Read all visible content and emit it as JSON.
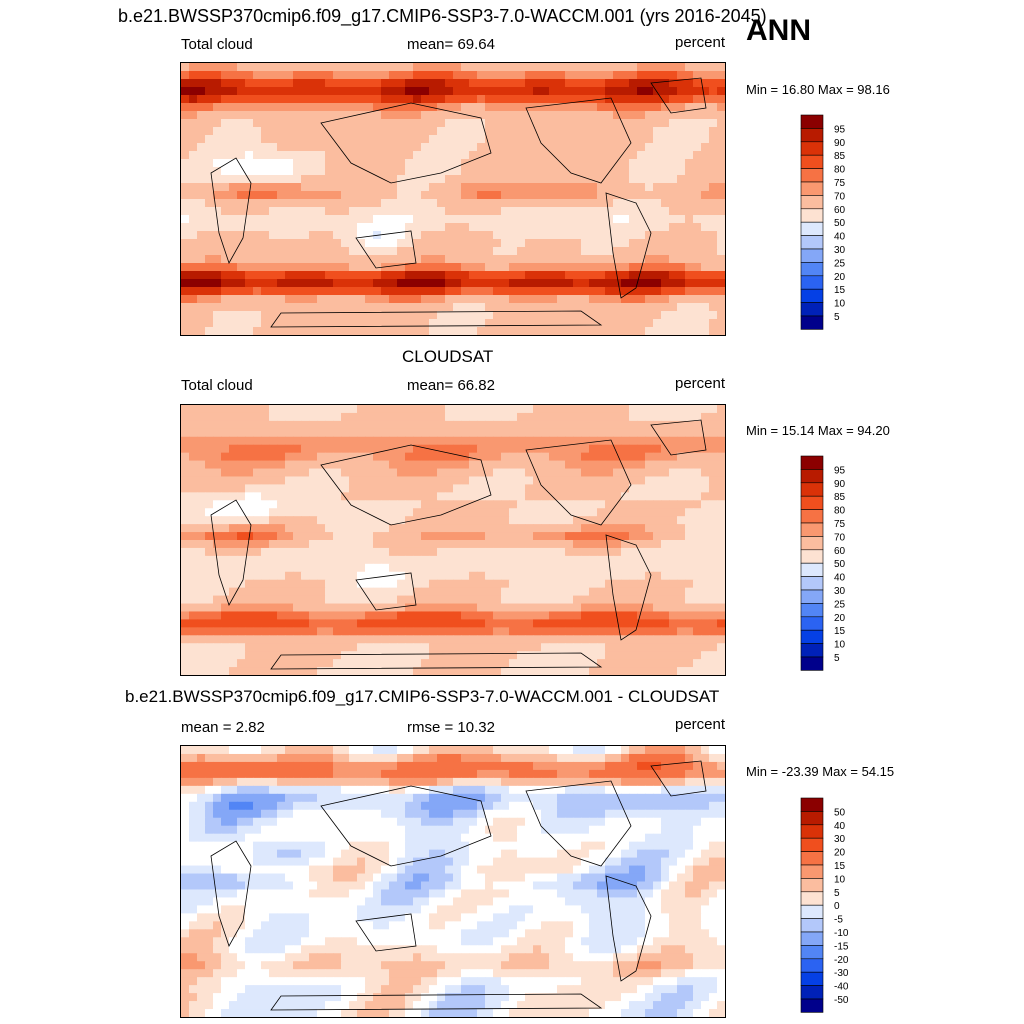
{
  "header": {
    "main_title": "b.e21.BWSSP370cmip6.f09_g17.CMIP6-SSP3-7.0-WACCM.001 (yrs 2016-2045)",
    "season": "ANN"
  },
  "colors": {
    "abs_scale": [
      "#00008b",
      "#0021b8",
      "#0540e5",
      "#2b63f2",
      "#5285f5",
      "#84a7f7",
      "#b3c8fa",
      "#dde8fd",
      "#ffffff",
      "#fde2d2",
      "#fbbd9f",
      "#f99870",
      "#f67244",
      "#f04f1e",
      "#da3208",
      "#b81b00",
      "#8b0000"
    ],
    "diff_scale": [
      "#00008b",
      "#0021b8",
      "#0540e5",
      "#2b63f2",
      "#5285f5",
      "#84a7f7",
      "#b3c8fa",
      "#dde8fd",
      "#ffffff",
      "#fde2d2",
      "#fbbd9f",
      "#f99870",
      "#f67244",
      "#f04f1e",
      "#da3208",
      "#b81b00",
      "#8b0000"
    ]
  },
  "panels": [
    {
      "title": "",
      "left_label": "Total cloud",
      "mean_label": "mean=  69.64",
      "units": "percent",
      "minmax": "Min =  16.80 Max =  98.16",
      "colorbar_labels": [
        "95",
        "90",
        "85",
        "80",
        "75",
        "70",
        "60",
        "50",
        "40",
        "30",
        "25",
        "20",
        "15",
        "10",
        "5"
      ]
    },
    {
      "title": "CLOUDSAT",
      "left_label": "Total cloud",
      "mean_label": "mean=  66.82",
      "units": "percent",
      "minmax": "Min =  15.14 Max =  94.20",
      "colorbar_labels": [
        "95",
        "90",
        "85",
        "80",
        "75",
        "70",
        "60",
        "50",
        "40",
        "30",
        "25",
        "20",
        "15",
        "10",
        "5"
      ]
    },
    {
      "title": "b.e21.BWSSP370cmip6.f09_g17.CMIP6-SSP3-7.0-WACCM.001 - CLOUDSAT",
      "left_label": "mean =   2.82",
      "mean_label": "rmse =  10.32",
      "units": "percent",
      "minmax": "Min = -23.39 Max =  54.15",
      "colorbar_labels": [
        "50",
        "40",
        "30",
        "20",
        "15",
        "10",
        "5",
        "0",
        "-5",
        "-10",
        "-15",
        "-20",
        "-30",
        "-40",
        "-50"
      ]
    }
  ],
  "chart_data": [
    {
      "type": "heatmap",
      "title": "",
      "field": "Total cloud",
      "units": "percent",
      "mean": 69.64,
      "min": 16.8,
      "max": 98.16,
      "levels": [
        5,
        10,
        15,
        20,
        25,
        30,
        40,
        50,
        60,
        70,
        75,
        80,
        85,
        90,
        95
      ]
    },
    {
      "type": "heatmap",
      "title": "CLOUDSAT",
      "field": "Total cloud",
      "units": "percent",
      "mean": 66.82,
      "min": 15.14,
      "max": 94.2,
      "levels": [
        5,
        10,
        15,
        20,
        25,
        30,
        40,
        50,
        60,
        70,
        75,
        80,
        85,
        90,
        95
      ]
    },
    {
      "type": "heatmap",
      "title": "b.e21.BWSSP370cmip6.f09_g17.CMIP6-SSP3-7.0-WACCM.001 - CLOUDSAT",
      "units": "percent",
      "mean": 2.82,
      "rmse": 10.32,
      "min": -23.39,
      "max": 54.15,
      "levels": [
        -50,
        -40,
        -30,
        -20,
        -15,
        -10,
        -5,
        0,
        5,
        10,
        15,
        20,
        30,
        40,
        50
      ]
    }
  ]
}
